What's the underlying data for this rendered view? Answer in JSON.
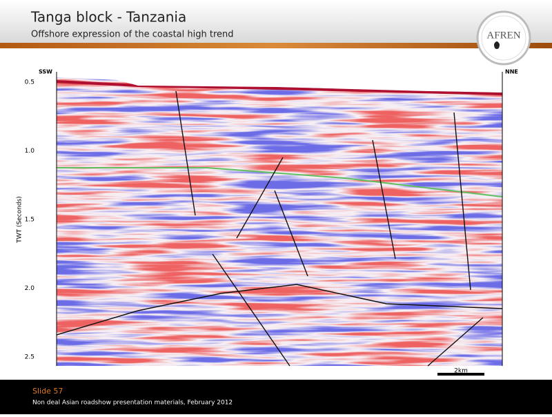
{
  "header": {
    "title": "Tanga block - Tanzania",
    "subtitle": "Offshore expression of the coastal high trend",
    "logo": "AFREN"
  },
  "section": {
    "left_label": "SSW",
    "right_label": "NNE",
    "axis_title": "TWT (Seconds)",
    "ticks": [
      "0.5",
      "1.0",
      "1.5",
      "2.0",
      "2.5"
    ],
    "scale_bar": "2km"
  },
  "footer": {
    "slide": "Slide 57",
    "note": "Non deal Asian roadshow presentation materials, February 2012"
  }
}
